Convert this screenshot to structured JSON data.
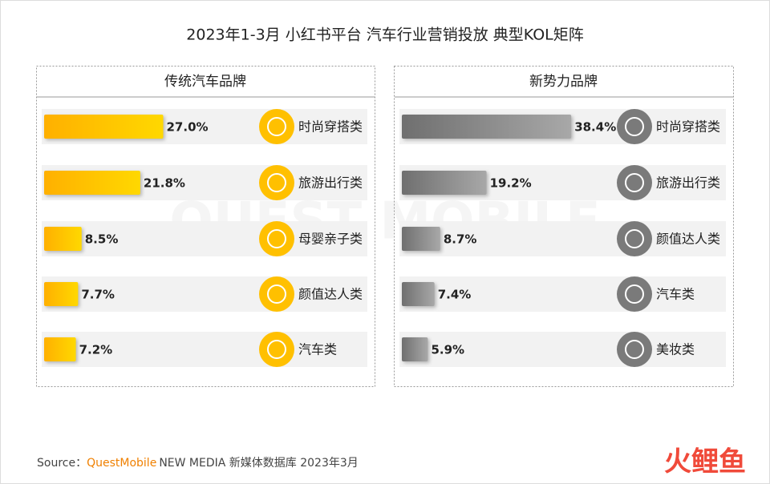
{
  "title": "2023年1-3月 小红书平台 汽车行业营销投放 典型KOL矩阵",
  "chart_data": [
    {
      "type": "bar",
      "orientation": "horizontal",
      "title": "传统汽车品牌",
      "color": "#FFC000",
      "categories": [
        "时尚穿搭类",
        "旅游出行类",
        "母婴亲子类",
        "颜值达人类",
        "汽车类"
      ],
      "values": [
        27.0,
        21.8,
        8.5,
        7.7,
        7.2
      ],
      "value_labels": [
        "27.0%",
        "21.8%",
        "8.5%",
        "7.7%",
        "7.2%"
      ]
    },
    {
      "type": "bar",
      "orientation": "horizontal",
      "title": "新势力品牌",
      "color": "#808080",
      "categories": [
        "时尚穿搭类",
        "旅游出行类",
        "颜值达人类",
        "汽车类",
        "美妆类"
      ],
      "values": [
        38.4,
        19.2,
        8.7,
        7.4,
        5.9
      ],
      "value_labels": [
        "38.4%",
        "19.2%",
        "8.7%",
        "7.4%",
        "5.9%"
      ]
    }
  ],
  "watermark": "QUEST MOBILE",
  "source": {
    "prefix": "Source：",
    "brand": "QuestMobile",
    "rest": "NEW MEDIA 新媒体数据库 2023年3月"
  },
  "logo": "火鲤鱼"
}
